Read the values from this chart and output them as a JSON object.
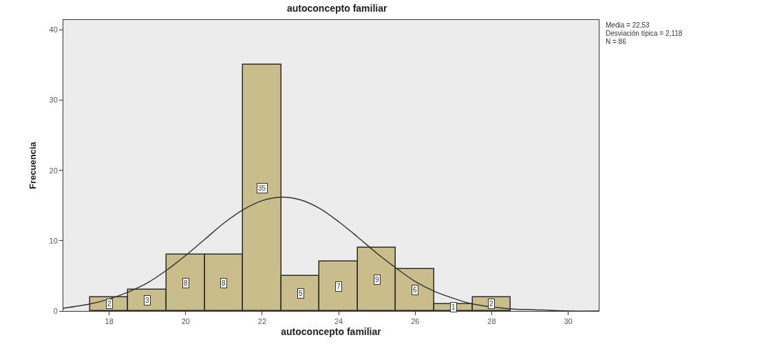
{
  "chart_data": {
    "type": "histogram",
    "title": "autoconcepto familiar",
    "xlabel": "autoconcepto familiar",
    "ylabel": "Frecuencia",
    "bins": [
      17.5,
      18.5,
      19.5,
      20.5,
      21.5,
      22.5,
      23.5,
      24.5,
      25.5,
      26.5,
      27.5,
      28.5
    ],
    "values": [
      2,
      3,
      8,
      8,
      35,
      5,
      7,
      9,
      6,
      1,
      2
    ],
    "color": "#c9be8b",
    "value_labels": [
      "2",
      "3",
      "8",
      "8",
      "35",
      "5",
      "7",
      "9",
      "6",
      "1",
      "2"
    ],
    "series": [
      {
        "type": "line",
        "color": "#333333",
        "x": [
          16.8,
          17.5,
          18,
          18.5,
          19,
          19.5,
          20,
          20.5,
          21,
          21.5,
          22,
          22.5,
          23,
          23.5,
          24,
          24.5,
          25,
          25.5,
          26,
          26.5,
          27,
          27.5,
          28.5,
          29,
          30,
          30.8
        ],
        "values": [
          0.4,
          1.0,
          1.7,
          2.7,
          4.0,
          5.8,
          7.9,
          10.2,
          12.5,
          14.4,
          15.7,
          16.2,
          15.8,
          14.6,
          12.7,
          10.5,
          8.2,
          6.1,
          4.2,
          2.8,
          1.8,
          1.0,
          0.3,
          0.2,
          0.0,
          0.0
        ]
      }
    ],
    "xlim": [
      16.8,
      30.8
    ],
    "xticks": [
      18,
      20,
      22,
      24,
      26,
      28,
      30
    ],
    "ylim": [
      0,
      41.4
    ],
    "yticks": [
      0,
      10,
      20,
      30,
      40
    ],
    "grid": false,
    "annotations": [
      "Media = 22,53",
      "Desviación típica = 2,118",
      "N = 86"
    ]
  }
}
